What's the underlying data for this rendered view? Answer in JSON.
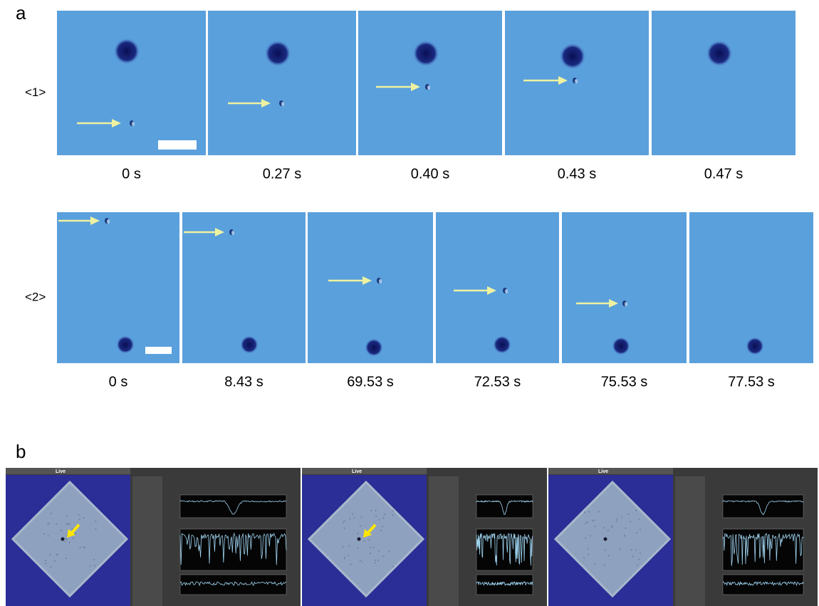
{
  "panel_a": {
    "label": "a",
    "rows": [
      {
        "label": "<1>",
        "times": [
          "0 s",
          "0.27 s",
          "0.40 s",
          "0.43 s",
          "0.47 s"
        ]
      },
      {
        "label": "<2>",
        "times": [
          "0 s",
          "8.43 s",
          "69.53 s",
          "72.53 s",
          "75.53 s",
          "77.53 s"
        ]
      }
    ]
  },
  "panel_b": {
    "label": "b",
    "screens": [
      {
        "mode": "Live"
      },
      {
        "mode": "Live"
      },
      {
        "mode": "Live"
      }
    ]
  }
}
